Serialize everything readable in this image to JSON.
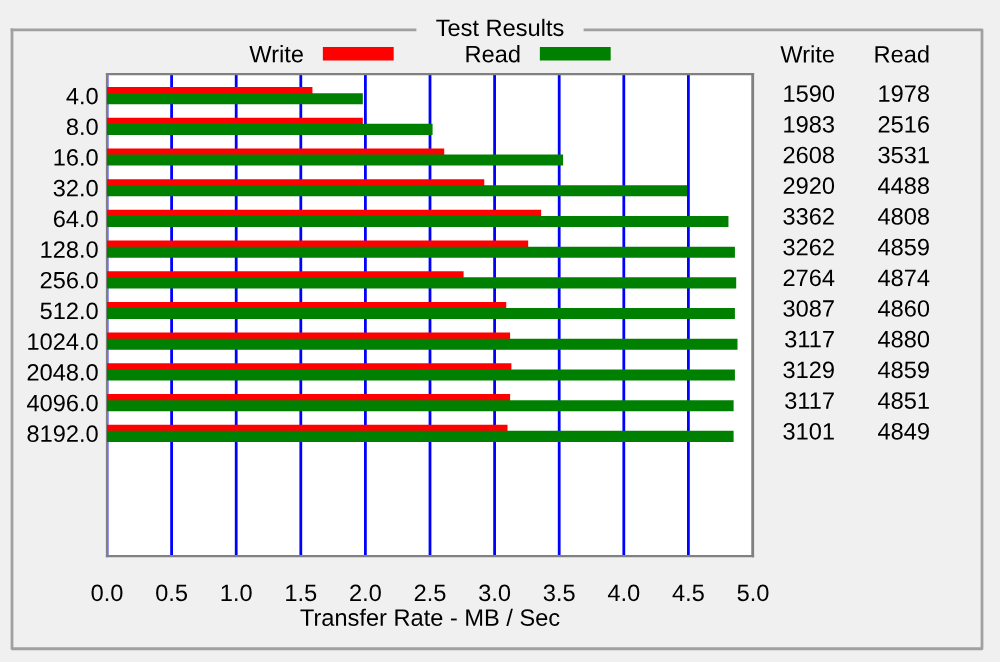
{
  "chart_data": {
    "type": "bar",
    "orientation": "horizontal",
    "title": "Test Results",
    "xlabel": "Transfer Rate - MB / Sec",
    "categories": [
      "4.0",
      "8.0",
      "16.0",
      "32.0",
      "64.0",
      "128.0",
      "256.0",
      "512.0",
      "1024.0",
      "2048.0",
      "4096.0",
      "8192.0"
    ],
    "series": [
      {
        "name": "Write",
        "color": "#ff0000",
        "values": [
          1.59,
          1.98,
          2.61,
          2.92,
          3.36,
          3.26,
          2.76,
          3.09,
          3.12,
          3.13,
          3.12,
          3.1
        ]
      },
      {
        "name": "Read",
        "color": "#008000",
        "values": [
          1.98,
          2.52,
          3.53,
          4.49,
          4.81,
          4.86,
          4.87,
          4.86,
          4.88,
          4.86,
          4.85,
          4.85
        ]
      }
    ],
    "annotations": [
      "1590",
      "1978",
      "1983",
      "2516",
      "2608",
      "3531",
      "2920",
      "4488",
      "3362",
      "4808",
      "3262",
      "4859",
      "2764",
      "4874",
      "3087",
      "4860",
      "3117",
      "4880",
      "3129",
      "4859",
      "3117",
      "4851",
      "3101",
      "4849"
    ],
    "xlim": [
      0,
      5
    ],
    "xticks": [
      {
        "value": 0,
        "label": "0.0"
      },
      {
        "value": 0.5,
        "label": "0.5"
      },
      {
        "value": 1,
        "label": "1.0"
      },
      {
        "value": 1.5,
        "label": "1.5"
      },
      {
        "value": 2,
        "label": "2.0"
      },
      {
        "value": 2.5,
        "label": "2.5"
      },
      {
        "value": 3,
        "label": "3.0"
      },
      {
        "value": 3.5,
        "label": "3.5"
      },
      {
        "value": 4,
        "label": "4.0"
      },
      {
        "value": 4.5,
        "label": "4.5"
      },
      {
        "value": 5,
        "label": "5.0"
      }
    ],
    "grid": "x",
    "legend": "top"
  }
}
